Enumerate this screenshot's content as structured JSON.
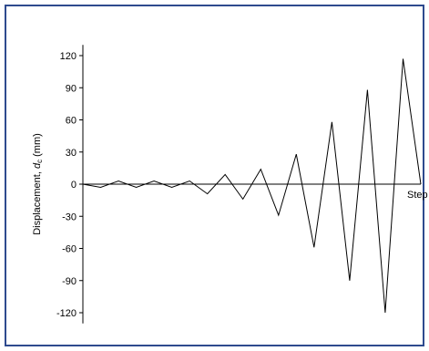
{
  "chart_data": {
    "type": "line",
    "title": "",
    "xlabel": "Step",
    "ylabel_text": "Displacement, ",
    "ylabel_symbol": "d",
    "ylabel_subscript": "c",
    "ylabel_unit": " (mm)",
    "ylim": [
      -130,
      130
    ],
    "xlim": [
      0,
      39
    ],
    "yticks": [
      120,
      90,
      60,
      30,
      0,
      -30,
      -60,
      -90,
      -120
    ],
    "grid": false,
    "series": [
      {
        "values": [
          [
            0,
            0
          ],
          [
            1,
            -3
          ],
          [
            2,
            3
          ],
          [
            3,
            -3
          ],
          [
            4,
            3
          ],
          [
            5,
            -3
          ],
          [
            6,
            3
          ],
          [
            7,
            -9
          ],
          [
            8,
            9
          ],
          [
            9,
            -14
          ],
          [
            10,
            14
          ],
          [
            11,
            -29
          ],
          [
            12,
            28
          ],
          [
            13,
            -59
          ],
          [
            14,
            58
          ],
          [
            15,
            -90
          ],
          [
            16,
            88
          ],
          [
            17,
            -120
          ],
          [
            18,
            117
          ],
          [
            19,
            0
          ]
        ]
      }
    ],
    "colors": {
      "line": "#000000",
      "axis": "#000000",
      "frame": "#2e4a8e"
    }
  }
}
